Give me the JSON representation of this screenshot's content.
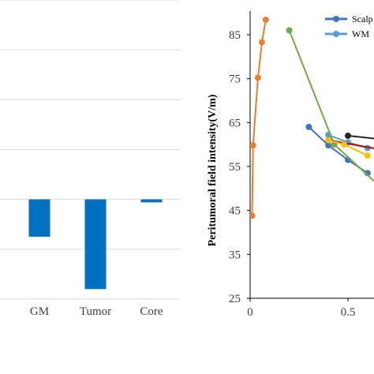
{
  "chart_data": [
    {
      "type": "bar",
      "categories": [
        "GM",
        "Tumor",
        "Core"
      ],
      "values": [
        -0.75,
        -1.8,
        -0.06
      ],
      "ylim": [
        -2,
        4
      ],
      "gridlines": true,
      "colors": {
        "bar": "#0070C0",
        "grid": "#d9d9d9"
      }
    },
    {
      "type": "line",
      "ylabel": "Peritumoral field intensity(V/m)",
      "xlim": [
        0,
        0.65
      ],
      "ylim": [
        25,
        90
      ],
      "x_ticks": [
        "0",
        "0.5"
      ],
      "y_ticks": [
        "25",
        "35",
        "45",
        "55",
        "65",
        "75",
        "85"
      ],
      "legend_position": "top-right",
      "series": [
        {
          "name": "Scalp",
          "color": "#4472C4",
          "x": [
            0.3,
            0.4,
            0.5,
            0.6
          ],
          "y": [
            64,
            59.8,
            56.5,
            53.5
          ]
        },
        {
          "name": "WM",
          "color": "#5B9BD5",
          "x": [
            0.4,
            0.5,
            0.6
          ],
          "y": [
            62.2,
            60.5,
            59.2
          ]
        },
        {
          "color": "#ED7D31",
          "x": [
            0.01,
            0.015,
            0.04,
            0.06,
            0.08
          ],
          "y": [
            43.8,
            59.8,
            75.2,
            83.3,
            88.4
          ]
        },
        {
          "color": "#70AD47",
          "x": [
            0.2,
            0.43,
            0.65
          ],
          "y": [
            86,
            60,
            51
          ]
        },
        {
          "color": "#C00000",
          "x": [
            0.4,
            0.65
          ],
          "y": [
            61,
            59
          ]
        },
        {
          "color": "#FFC000",
          "x": [
            0.4,
            0.48,
            0.6
          ],
          "y": [
            61,
            60,
            57.5
          ]
        },
        {
          "color": "#262626",
          "x": [
            0.5,
            0.65
          ],
          "y": [
            62,
            61.3
          ]
        }
      ]
    }
  ]
}
